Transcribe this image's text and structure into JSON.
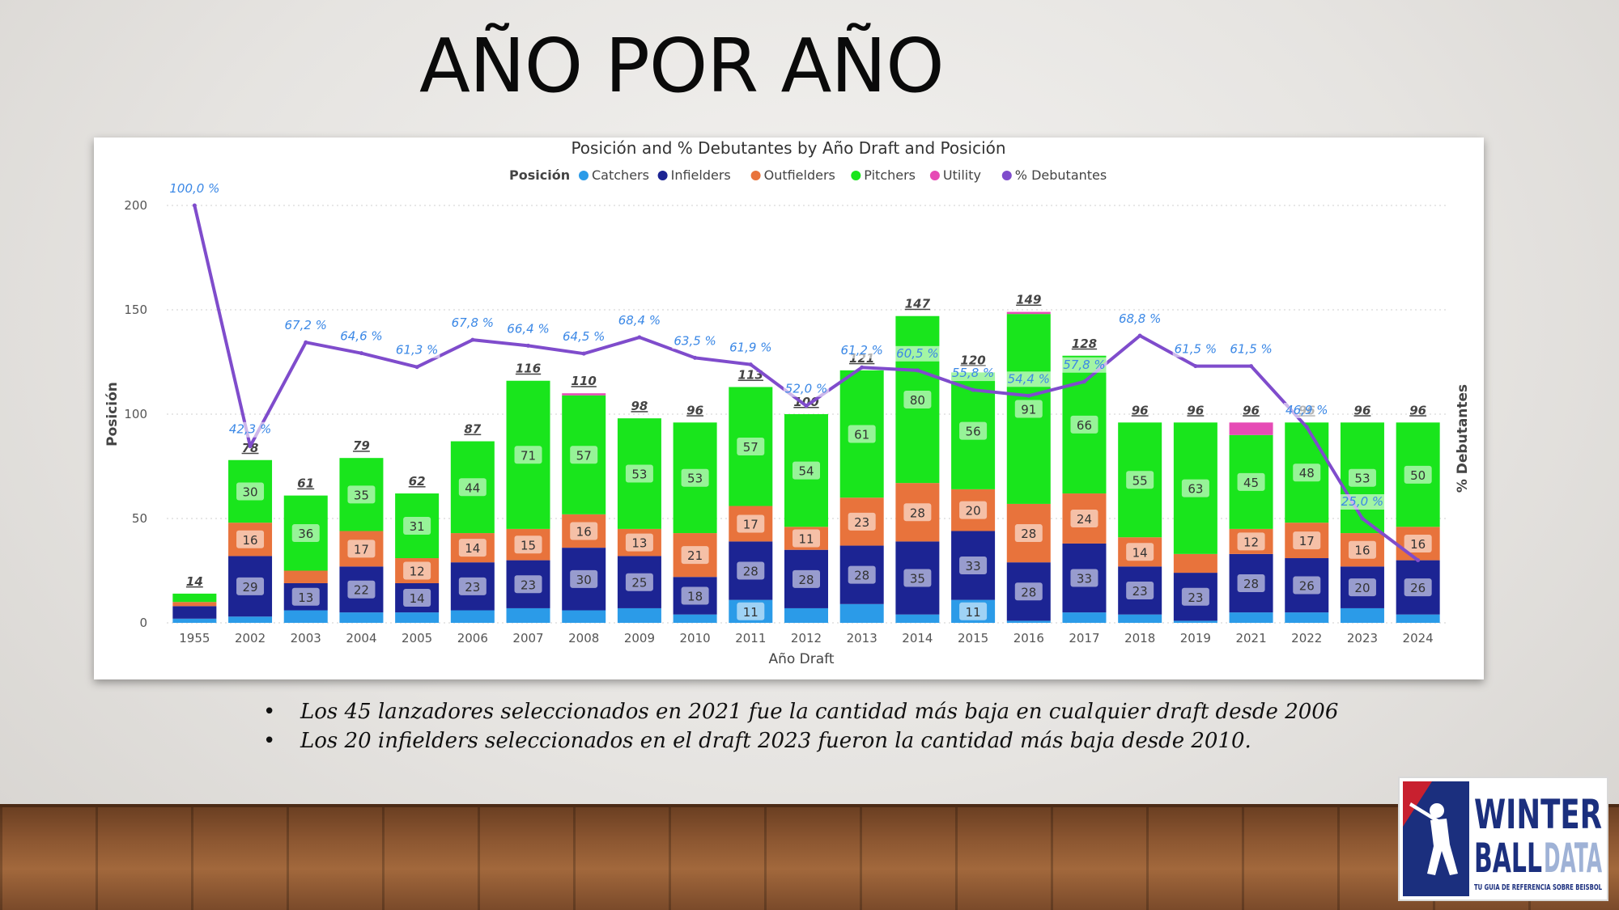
{
  "slide": {
    "title": "AÑO POR AÑO",
    "bullets": [
      "Los 45 lanzadores seleccionados en 2021 fue la cantidad más baja en cualquier draft desde 2006",
      "Los 20 infielders seleccionados en el draft 2023 fueron la cantidad más baja desde 2010."
    ],
    "bullet_marker": "•"
  },
  "logo": {
    "line1": "WINTER",
    "line2a": "BALL",
    "line2b": "DATA",
    "tagline": "TU GUIA DE REFERENCIA SOBRE BEISBOL",
    "colors": {
      "blue": "#1b2f7e",
      "red": "#c8202f",
      "light": "#9fb2d6"
    }
  },
  "chart_data": {
    "type": "bar",
    "stacked": true,
    "title": "Posición and % Debutantes by Año Draft and Posición",
    "legend_title": "Posición",
    "legend_position": "top-center",
    "xlabel": "Año Draft",
    "ylabel": "Posición",
    "y2label": "% Debutantes",
    "ylim": [
      0,
      200
    ],
    "yticks": [
      0,
      50,
      100,
      150,
      200
    ],
    "grid": true,
    "categories": [
      "1955",
      "2002",
      "2003",
      "2004",
      "2005",
      "2006",
      "2007",
      "2008",
      "2009",
      "2010",
      "2011",
      "2012",
      "2013",
      "2014",
      "2015",
      "2016",
      "2017",
      "2018",
      "2019",
      "2021",
      "2022",
      "2023",
      "2024"
    ],
    "series": [
      {
        "name": "Catchers",
        "color": "#2b9be8",
        "values": [
          2,
          3,
          6,
          5,
          5,
          6,
          7,
          6,
          7,
          4,
          11,
          7,
          9,
          4,
          11,
          1,
          5,
          4,
          1,
          5,
          5,
          7,
          4
        ],
        "labels": [
          "",
          "",
          "",
          "",
          "",
          "",
          "",
          "",
          "",
          "",
          "11",
          "",
          "",
          "",
          "11",
          "",
          "",
          "",
          "",
          "",
          "",
          "",
          ""
        ]
      },
      {
        "name": "Infielders",
        "color": "#1c2493",
        "values": [
          6,
          29,
          13,
          22,
          14,
          23,
          23,
          30,
          25,
          18,
          28,
          28,
          28,
          35,
          33,
          28,
          33,
          23,
          23,
          28,
          26,
          20,
          26
        ],
        "labels": [
          "",
          "29",
          "13",
          "22",
          "14",
          "23",
          "23",
          "30",
          "25",
          "18",
          "28",
          "28",
          "28",
          "35",
          "33",
          "28",
          "33",
          "23",
          "23",
          "28",
          "26",
          "20",
          "26"
        ]
      },
      {
        "name": "Outfielders",
        "color": "#e8733c",
        "values": [
          2,
          16,
          6,
          17,
          12,
          14,
          15,
          16,
          13,
          21,
          17,
          11,
          23,
          28,
          20,
          28,
          24,
          14,
          9,
          12,
          17,
          16,
          16
        ],
        "labels": [
          "",
          "16",
          "",
          "17",
          "12",
          "14",
          "15",
          "16",
          "13",
          "21",
          "17",
          "11",
          "23",
          "28",
          "20",
          "28",
          "24",
          "14",
          "",
          "12",
          "17",
          "16",
          "16"
        ]
      },
      {
        "name": "Pitchers",
        "color": "#19e51c",
        "values": [
          4,
          30,
          36,
          35,
          31,
          44,
          71,
          57,
          53,
          53,
          57,
          54,
          61,
          80,
          56,
          91,
          66,
          55,
          63,
          45,
          48,
          53,
          50
        ],
        "labels": [
          "",
          "30",
          "36",
          "35",
          "31",
          "44",
          "71",
          "57",
          "53",
          "53",
          "57",
          "54",
          "61",
          "80",
          "56",
          "91",
          "66",
          "55",
          "63",
          "45",
          "48",
          "53",
          "50"
        ]
      },
      {
        "name": "Utility",
        "color": "#e64bb5",
        "values": [
          0,
          0,
          0,
          0,
          0,
          0,
          0,
          1,
          0,
          0,
          0,
          0,
          0,
          0,
          0,
          1,
          0,
          0,
          0,
          6,
          0,
          0,
          0
        ],
        "labels": [
          "",
          "",
          "",
          "",
          "",
          "",
          "",
          "",
          "",
          "",
          "",
          "",
          "",
          "",
          "",
          "",
          "",
          "",
          "",
          "",
          "",
          "",
          ""
        ]
      }
    ],
    "totals": [
      "14",
      "78",
      "61",
      "79",
      "62",
      "87",
      "116",
      "110",
      "98",
      "96",
      "113",
      "100",
      "121",
      "147",
      "120",
      "149",
      "128",
      "96",
      "96",
      "96",
      "96",
      "96",
      "96"
    ],
    "line_series": {
      "name": "% Debutantes",
      "color": "#7f4ccc",
      "y2lim": [
        0,
        100
      ],
      "values": [
        100.0,
        42.3,
        67.2,
        64.6,
        61.3,
        67.8,
        66.4,
        64.5,
        68.4,
        63.5,
        61.9,
        52.0,
        61.2,
        60.5,
        55.8,
        54.4,
        57.8,
        68.8,
        61.5,
        61.5,
        46.9,
        25.0,
        15.0
      ],
      "labels": [
        "100,0 %",
        "42,3 %",
        "67,2 %",
        "64,6 %",
        "61,3 %",
        "67,8 %",
        "66,4 %",
        "64,5 %",
        "68,4 %",
        "63,5 %",
        "61,9 %",
        "52,0 %",
        "61,2 %",
        "60,5 %",
        "55,8 %",
        "54,4 %",
        "57,8 %",
        "68,8 %",
        "61,5 %",
        "61,5 %",
        "46,9 %",
        "25,0 %",
        ""
      ]
    }
  }
}
